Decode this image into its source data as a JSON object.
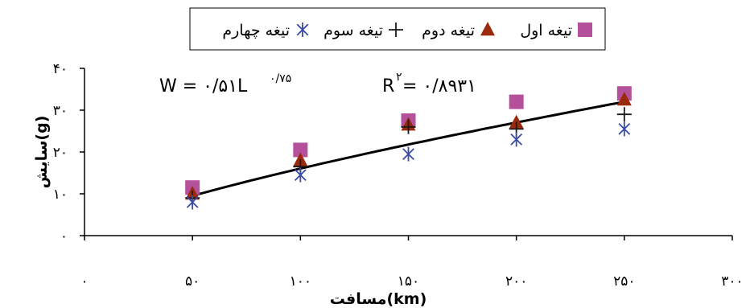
{
  "chart_data": {
    "type": "scatter",
    "xlabel": "مسافت(km)",
    "ylabel": "سایش(g)",
    "x_ticks": [
      "۰",
      "۵۰",
      "۱۰۰",
      "۱۵۰",
      "۲۰۰",
      "۲۵۰",
      "۳۰۰"
    ],
    "y_ticks": [
      "۰",
      "۱۰",
      "۲۰",
      "۳۰",
      "۴۰"
    ],
    "xlim": [
      0,
      300
    ],
    "ylim": [
      0,
      40
    ],
    "grid": false,
    "legend_position": "top",
    "series": [
      {
        "name": "تیغه اول",
        "marker": "square",
        "color": "#b5509b",
        "x": [
          50,
          100,
          150,
          200,
          250
        ],
        "y": [
          11.5,
          20.5,
          27.5,
          32,
          34
        ]
      },
      {
        "name": "تیغه دوم",
        "marker": "triangle",
        "color": "#9a2a0e",
        "x": [
          50,
          100,
          150,
          200,
          250
        ],
        "y": [
          10,
          18,
          26.5,
          27,
          32.5
        ]
      },
      {
        "name": "تیغه سوم",
        "marker": "plus",
        "color": "#1a1a1a",
        "x": [
          50,
          100,
          150,
          200,
          250
        ],
        "y": [
          9,
          16.5,
          26,
          25.5,
          29
        ]
      },
      {
        "name": "تیغه چهارم",
        "marker": "asterisk",
        "color": "#3a4aa8",
        "x": [
          50,
          100,
          150,
          200,
          250
        ],
        "y": [
          8,
          14.5,
          19.5,
          23,
          25.5
        ]
      }
    ],
    "trendline": {
      "type": "power",
      "a": 0.51,
      "b": 0.75,
      "color": "#000000",
      "equation_text": "W = ۰/۵۱L",
      "equation_exponent": "۰/۷۵",
      "r2_label": "R",
      "r2_superscript": "۲",
      "r2_value": " = ۰/۸۹۳۱"
    }
  }
}
